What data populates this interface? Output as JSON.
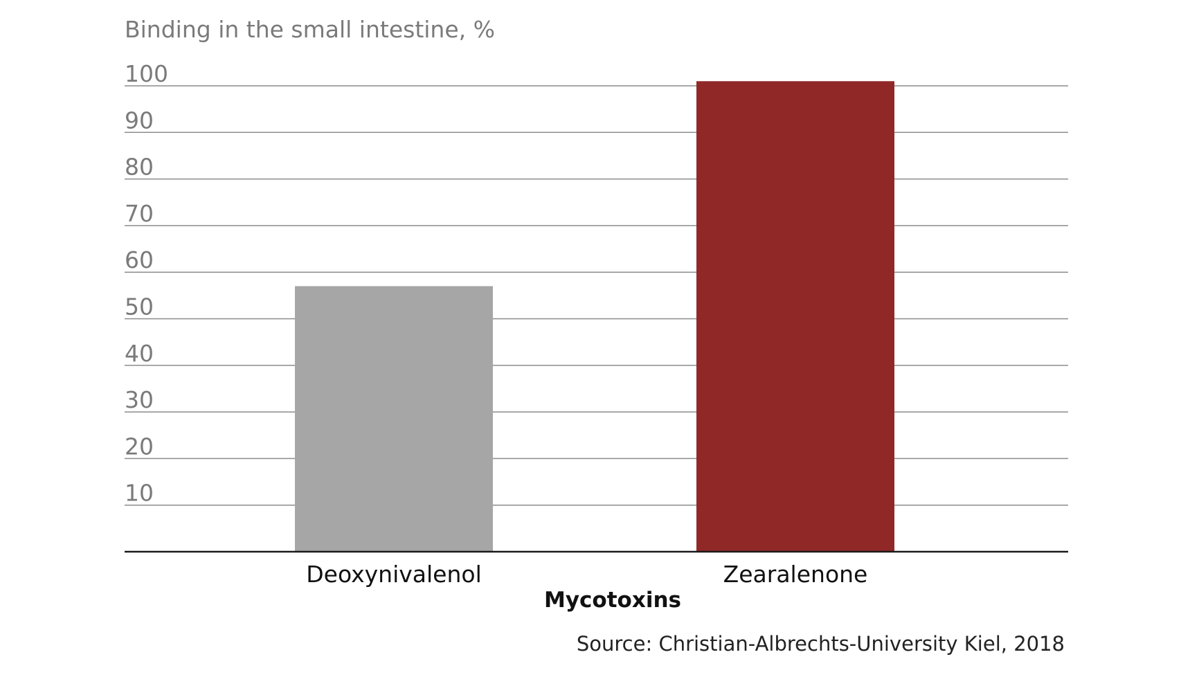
{
  "chart_data": {
    "type": "bar",
    "ylabel": "Binding in the small intestine, %",
    "xlabel": "Mycotoxins",
    "categories": [
      "Deoxynivalenol",
      "Zearalenone"
    ],
    "values": [
      57,
      101
    ],
    "bar_colors": [
      "#a5a6a5",
      "#902828"
    ],
    "ylim": [
      0,
      100
    ],
    "yticks": [
      10,
      20,
      30,
      40,
      50,
      60,
      70,
      80,
      90,
      100
    ],
    "grid": true,
    "source": "Source: Christian-Albrechts-University Kiel, 2018"
  }
}
